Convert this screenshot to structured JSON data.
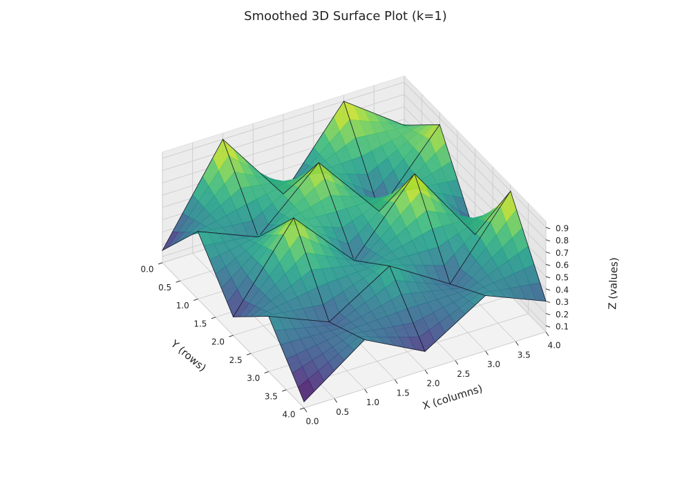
{
  "chart_data": {
    "type": "surface3d",
    "title": "Smoothed 3D Surface Plot (k=1)",
    "x_label": "X (columns)",
    "y_label": "Y (rows)",
    "z_label": "Z (values)",
    "x": [
      0,
      1,
      2,
      3,
      4
    ],
    "y": [
      0,
      1,
      2,
      3,
      4
    ],
    "z": [
      [
        0.15,
        0.9,
        0.3,
        0.9,
        0.55
      ],
      [
        0.6,
        0.4,
        0.85,
        0.3,
        0.85
      ],
      [
        0.2,
        0.85,
        0.35,
        0.9,
        0.25
      ],
      [
        0.5,
        0.3,
        0.6,
        0.3,
        0.9
      ],
      [
        0.1,
        0.45,
        0.2,
        0.5,
        0.3
      ]
    ],
    "colormap": "viridis",
    "xlim": [
      0,
      4
    ],
    "ylim": [
      0,
      4
    ],
    "zlim": [
      0.05,
      0.95
    ],
    "xticks": [
      {
        "value": 0,
        "label": "0.0"
      },
      {
        "value": 0.5,
        "label": "0.5"
      },
      {
        "value": 1,
        "label": "1.0"
      },
      {
        "value": 1.5,
        "label": "1.5"
      },
      {
        "value": 2,
        "label": "2.0"
      },
      {
        "value": 2.5,
        "label": "2.5"
      },
      {
        "value": 3,
        "label": "3.0"
      },
      {
        "value": 3.5,
        "label": "3.5"
      },
      {
        "value": 4,
        "label": "4.0"
      }
    ],
    "yticks": [
      {
        "value": 0,
        "label": "0.0"
      },
      {
        "value": 0.5,
        "label": "0.5"
      },
      {
        "value": 1,
        "label": "1.0"
      },
      {
        "value": 1.5,
        "label": "1.5"
      },
      {
        "value": 2,
        "label": "2.0"
      },
      {
        "value": 2.5,
        "label": "2.5"
      },
      {
        "value": 3,
        "label": "3.0"
      },
      {
        "value": 3.5,
        "label": "3.5"
      },
      {
        "value": 4,
        "label": "4.0"
      }
    ],
    "zticks": [
      0.1,
      0.2,
      0.3,
      0.4,
      0.5,
      0.6,
      0.7,
      0.8,
      0.9
    ],
    "grid": true
  }
}
